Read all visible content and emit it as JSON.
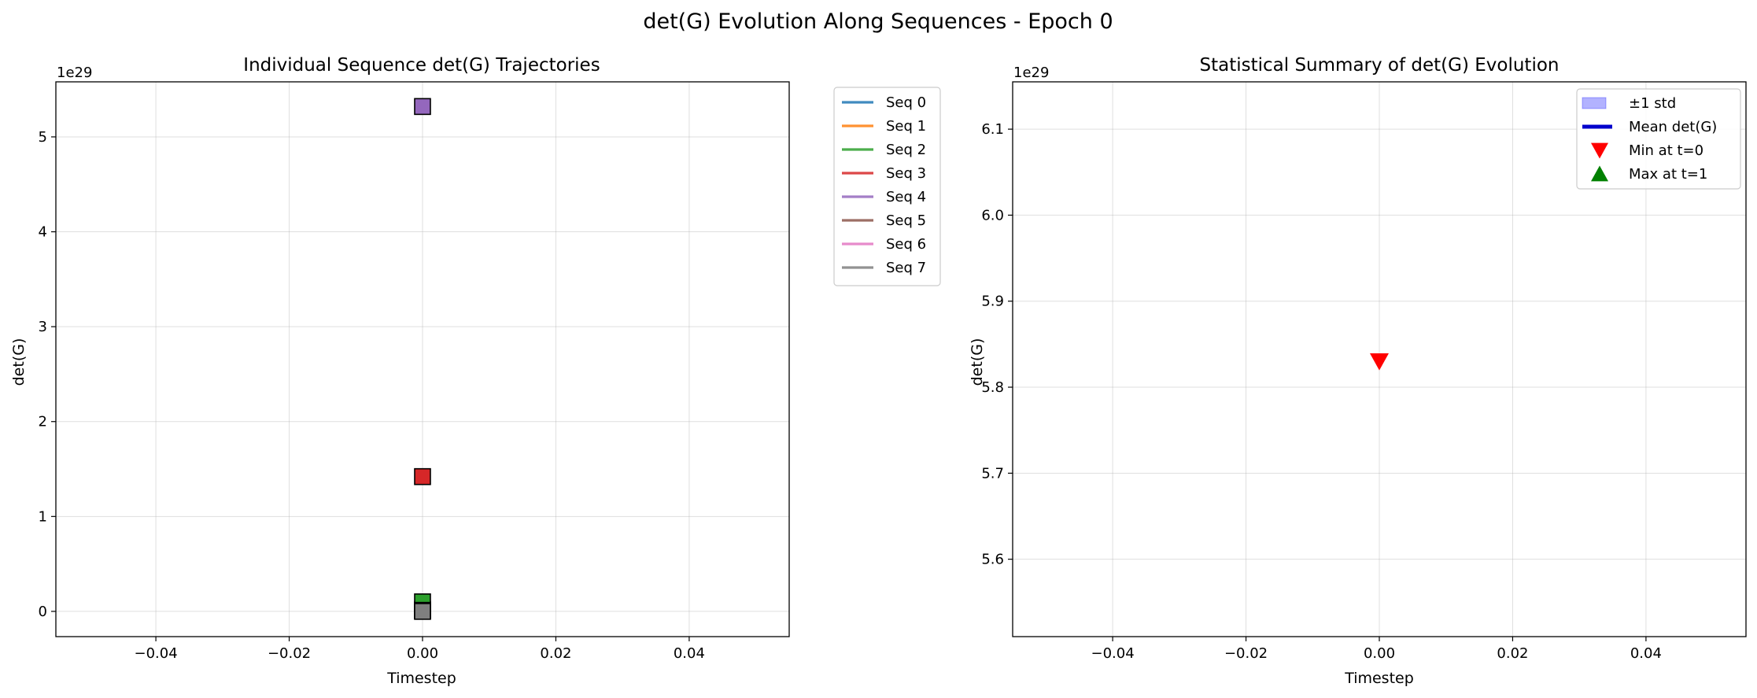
{
  "figure": {
    "suptitle": "det(G) Evolution Along Sequences - Epoch 0"
  },
  "chart_data": [
    {
      "type": "scatter",
      "title": "Individual Sequence det(G) Trajectories",
      "xlabel": "Timestep",
      "ylabel": "det(G)",
      "offset_label": "1e29",
      "xlim": [
        -0.055,
        0.055
      ],
      "ylim": [
        -0.266,
        5.58
      ],
      "xticks": [
        -0.04,
        -0.02,
        0.0,
        0.02,
        0.04
      ],
      "xtick_labels": [
        "−0.04",
        "−0.02",
        "0.00",
        "0.02",
        "0.04"
      ],
      "yticks": [
        0,
        1,
        2,
        3,
        4,
        5
      ],
      "ytick_labels": [
        "0",
        "1",
        "2",
        "3",
        "4",
        "5"
      ],
      "grid": true,
      "legend_position": "outside-right",
      "series": [
        {
          "name": "Seq 0",
          "color": "#1f77b4",
          "x": [
            0
          ],
          "y": [
            0.01
          ]
        },
        {
          "name": "Seq 1",
          "color": "#ff7f0e",
          "x": [
            0
          ],
          "y": [
            0.02
          ]
        },
        {
          "name": "Seq 2",
          "color": "#2ca02c",
          "x": [
            0
          ],
          "y": [
            0.1
          ]
        },
        {
          "name": "Seq 3",
          "color": "#d62728",
          "x": [
            0
          ],
          "y": [
            1.42
          ]
        },
        {
          "name": "Seq 4",
          "color": "#9467bd",
          "x": [
            0
          ],
          "y": [
            5.32
          ]
        },
        {
          "name": "Seq 5",
          "color": "#8c564b",
          "x": [
            0
          ],
          "y": [
            0.01
          ]
        },
        {
          "name": "Seq 6",
          "color": "#e377c2",
          "x": [
            0
          ],
          "y": [
            0.01
          ]
        },
        {
          "name": "Seq 7",
          "color": "#7f7f7f",
          "x": [
            0
          ],
          "y": [
            0.0
          ]
        }
      ]
    },
    {
      "type": "scatter",
      "title": "Statistical Summary of det(G) Evolution",
      "xlabel": "Timestep",
      "ylabel": "det(G)",
      "offset_label": "1e29",
      "xlim": [
        -0.055,
        0.055
      ],
      "ylim": [
        5.51,
        6.155
      ],
      "xticks": [
        -0.04,
        -0.02,
        0.0,
        0.02,
        0.04
      ],
      "xtick_labels": [
        "−0.04",
        "−0.02",
        "0.00",
        "0.02",
        "0.04"
      ],
      "yticks": [
        5.6,
        5.7,
        5.8,
        5.9,
        6.0,
        6.1
      ],
      "ytick_labels": [
        "5.6",
        "5.7",
        "5.8",
        "5.9",
        "6.0",
        "6.1"
      ],
      "grid": true,
      "legend_position": "top-right",
      "legend": [
        {
          "name": "±1 std",
          "kind": "patch",
          "color": "#0000ff"
        },
        {
          "name": "Mean det(G)",
          "kind": "line",
          "color": "#0000cc"
        },
        {
          "name": "Min at t=0",
          "kind": "triangle-down",
          "color": "#ff0000"
        },
        {
          "name": "Max at t=1",
          "kind": "triangle-up",
          "color": "#008000"
        }
      ],
      "markers": [
        {
          "kind": "triangle-down",
          "color": "#ff0000",
          "x": 0,
          "y": 5.83
        }
      ]
    }
  ]
}
